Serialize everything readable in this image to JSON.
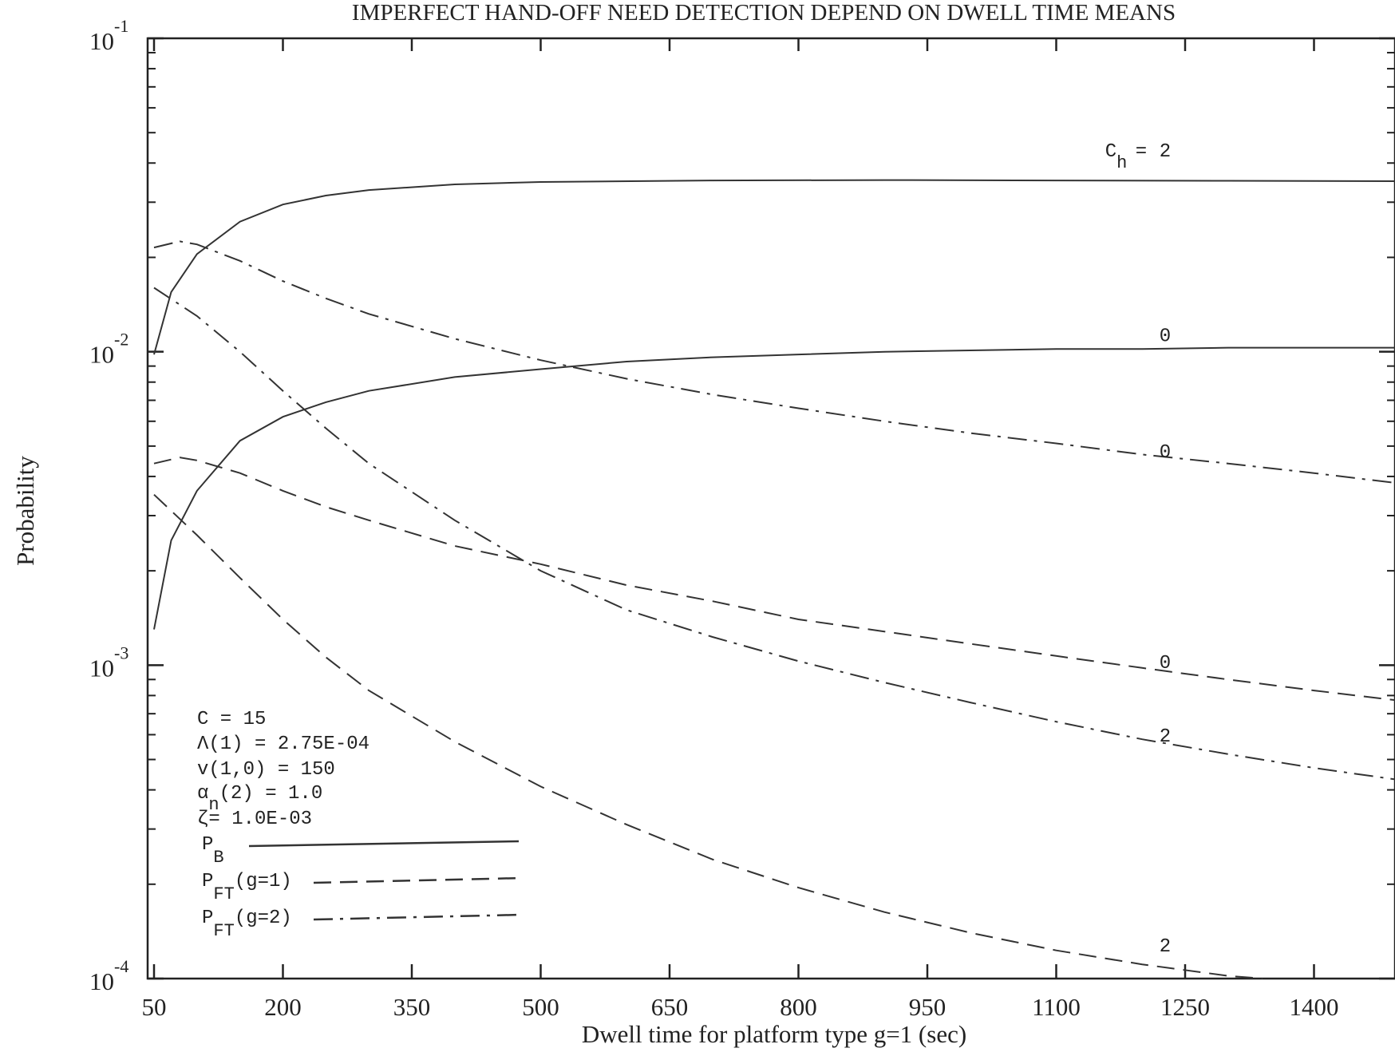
{
  "chart_data": {
    "type": "line",
    "title": "IMPERFECT HAND-OFF NEED DETECTION DEPEND ON DWELL TIME MEANS",
    "xlabel": "Dwell time for platform type g=1 (sec)",
    "ylabel": "Probability",
    "xlim": [
      50,
      1500
    ],
    "ylim": [
      0.0001,
      0.1
    ],
    "yscale": "log",
    "x_ticks": [
      50,
      200,
      350,
      500,
      650,
      800,
      950,
      1100,
      1250,
      1400
    ],
    "x_tick_labels": [
      "50",
      "200",
      "350",
      "500",
      "650",
      "800",
      "950",
      "1100",
      "1250",
      "1400"
    ],
    "y_ticks": [
      {
        "value": 0.1,
        "base": "10",
        "exp": "-1"
      },
      {
        "value": 0.01,
        "base": "10",
        "exp": "-2"
      },
      {
        "value": 0.001,
        "base": "10",
        "exp": "-3"
      },
      {
        "value": 0.0001,
        "base": "10",
        "exp": "-4"
      }
    ],
    "grid": false,
    "legend_position": "bottom-left",
    "parameters": {
      "C": "C = 15",
      "lambda": "Λ(1) = 2.75E-04",
      "nu": "v(1,0) = 150",
      "alpha_prefix": "α",
      "alpha_sub": "n",
      "alpha_suffix": "(2) = 1.0",
      "zeta": "ζ= 1.0E-03"
    },
    "legend": [
      {
        "label": "P",
        "sub": "B",
        "suffix": "",
        "dash": "solid"
      },
      {
        "label": "P",
        "sub": "FT",
        "suffix": "(g=1)",
        "dash": "dashed"
      },
      {
        "label": "P",
        "sub": "FT",
        "suffix": "(g=2)",
        "dash": "dashdot"
      }
    ],
    "curve_label_prefix": "C",
    "curve_label_sub": "h",
    "curve_label_eq": "=",
    "series": [
      {
        "metric": "P_B",
        "ch": "2",
        "style": "solid",
        "label": "2",
        "label_x": 1220,
        "label_y": 0.042,
        "x": [
          50,
          70,
          100,
          150,
          200,
          250,
          300,
          400,
          500,
          700,
          900,
          1100,
          1300,
          1500
        ],
        "y": [
          0.0098,
          0.0155,
          0.0205,
          0.026,
          0.0295,
          0.0315,
          0.0328,
          0.0342,
          0.0348,
          0.0352,
          0.0353,
          0.0352,
          0.0351,
          0.035
        ]
      },
      {
        "metric": "P_B",
        "ch": "0",
        "style": "solid",
        "label": "0",
        "label_x": 1220,
        "label_y": 0.0108,
        "x": [
          50,
          70,
          100,
          150,
          200,
          250,
          300,
          400,
          500,
          600,
          700,
          800,
          900,
          1000,
          1100,
          1200,
          1300,
          1400,
          1500
        ],
        "y": [
          0.0013,
          0.0025,
          0.0036,
          0.0052,
          0.0062,
          0.0069,
          0.0075,
          0.0083,
          0.0088,
          0.0093,
          0.0096,
          0.0098,
          0.01,
          0.0101,
          0.0102,
          0.0102,
          0.0103,
          0.0103,
          0.0103
        ]
      },
      {
        "metric": "P_FT(g=2)",
        "ch": "0",
        "style": "dashdot",
        "label": "0",
        "label_x": 1220,
        "label_y": 0.0046,
        "x": [
          50,
          80,
          100,
          150,
          200,
          250,
          300,
          400,
          500,
          600,
          700,
          800,
          900,
          1000,
          1100,
          1200,
          1300,
          1400,
          1500
        ],
        "y": [
          0.0215,
          0.0225,
          0.022,
          0.0195,
          0.0168,
          0.0148,
          0.0132,
          0.011,
          0.0094,
          0.0082,
          0.0073,
          0.0066,
          0.006,
          0.0055,
          0.0051,
          0.0047,
          0.0044,
          0.0041,
          0.0038
        ]
      },
      {
        "metric": "P_FT(g=1)",
        "ch": "0",
        "style": "dashed",
        "label": "0",
        "label_x": 1220,
        "label_y": 0.00098,
        "x": [
          50,
          80,
          100,
          150,
          200,
          250,
          300,
          400,
          500,
          600,
          700,
          800,
          900,
          1000,
          1100,
          1200,
          1300,
          1400,
          1500
        ],
        "y": [
          0.0044,
          0.0046,
          0.0045,
          0.0041,
          0.0036,
          0.0032,
          0.0029,
          0.0024,
          0.0021,
          0.0018,
          0.0016,
          0.0014,
          0.00128,
          0.00117,
          0.00107,
          0.00098,
          0.0009,
          0.00083,
          0.00077
        ]
      },
      {
        "metric": "P_FT(g=2)",
        "ch": "2",
        "style": "dashdot",
        "label": "2",
        "label_x": 1220,
        "label_y": 0.00057,
        "x": [
          50,
          100,
          150,
          200,
          250,
          300,
          400,
          500,
          600,
          700,
          800,
          900,
          1000,
          1100,
          1200,
          1300,
          1400,
          1500
        ],
        "y": [
          0.016,
          0.013,
          0.01,
          0.0075,
          0.0057,
          0.0044,
          0.0029,
          0.002,
          0.0015,
          0.00123,
          0.00103,
          0.00088,
          0.00076,
          0.00066,
          0.00058,
          0.00052,
          0.00047,
          0.00043
        ]
      },
      {
        "metric": "P_FT(g=1)",
        "ch": "2",
        "style": "dashed",
        "label": "2",
        "label_x": 1220,
        "label_y": 0.000122,
        "x": [
          50,
          100,
          150,
          200,
          250,
          300,
          400,
          500,
          600,
          700,
          800,
          900,
          1000,
          1100,
          1200,
          1300,
          1340
        ],
        "y": [
          0.0035,
          0.0026,
          0.0019,
          0.0014,
          0.00106,
          0.00083,
          0.00057,
          0.00041,
          0.00031,
          0.00024,
          0.000195,
          0.000163,
          0.00014,
          0.000123,
          0.000111,
          0.000102,
          0.0001
        ]
      }
    ]
  }
}
